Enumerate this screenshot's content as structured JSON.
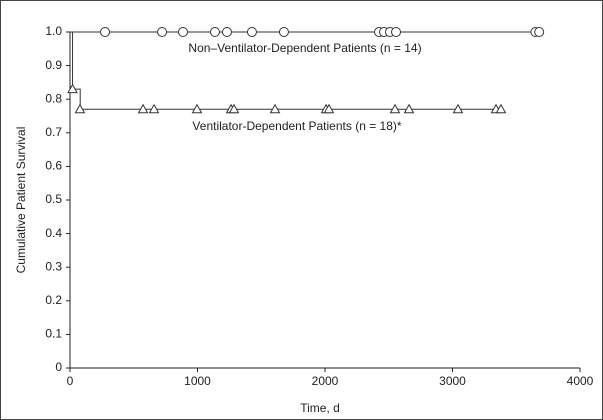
{
  "chart_data": {
    "type": "survival",
    "xlabel": "Time, d",
    "ylabel": "Cumulative Patient Survival",
    "xlim": [
      0,
      4000
    ],
    "xticks": [
      0,
      1000,
      2000,
      3000,
      4000
    ],
    "ylim": [
      0,
      1
    ],
    "yticks": [
      0,
      0.1,
      0.2,
      0.3,
      0.4,
      0.5,
      0.6,
      0.7,
      0.8,
      0.9,
      {
        "value": 1,
        "label": "1.0"
      }
    ],
    "series": [
      {
        "name": "Non–Ventilator-Dependent Patients (n = 14)",
        "color": "#333333",
        "marker": "circle",
        "x": [
          0,
          3680
        ],
        "values": [
          1,
          1
        ],
        "censored": {
          "x": [
            275,
            722,
            886,
            1137,
            1231,
            1427,
            1678,
            2424,
            2463,
            2510,
            2557,
            3650,
            3680
          ],
          "values": [
            1,
            1,
            1,
            1,
            1,
            1,
            1,
            1,
            1,
            1,
            1,
            1,
            1
          ]
        }
      },
      {
        "name": "Ventilator-Dependent Patients (n = 18)*",
        "color": "#333333",
        "marker": "triangle",
        "x": [
          0,
          20,
          20,
          80,
          80,
          3380
        ],
        "values": [
          1,
          1,
          0.83,
          0.83,
          0.77,
          0.77
        ],
        "censored": {
          "x": [
            20,
            78,
            573,
            659,
            996,
            1263,
            1286,
            1608,
            2008,
            2031,
            2549,
            2659,
            3043,
            3341,
            3380
          ],
          "values": [
            0.83,
            0.77,
            0.77,
            0.77,
            0.77,
            0.77,
            0.77,
            0.77,
            0.77,
            0.77,
            0.77,
            0.77,
            0.77,
            0.77,
            0.77
          ]
        }
      }
    ]
  }
}
